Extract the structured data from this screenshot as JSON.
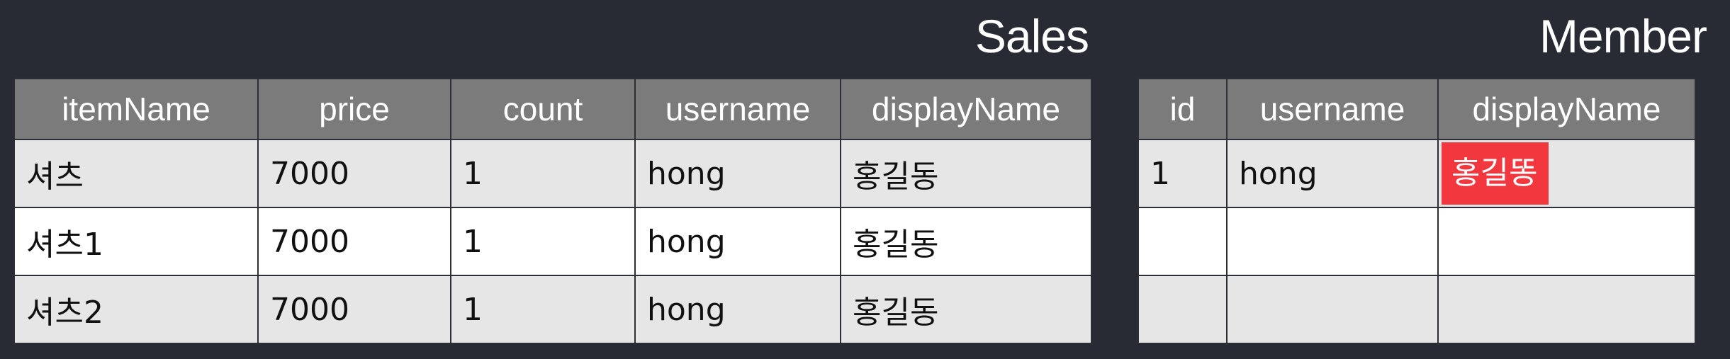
{
  "sales": {
    "title": "Sales",
    "columns": [
      "itemName",
      "price",
      "count",
      "username",
      "displayName"
    ],
    "rows": [
      [
        "셔츠",
        "7000",
        "1",
        "hong",
        "홍길동"
      ],
      [
        "셔츠1",
        "7000",
        "1",
        "hong",
        "홍길동"
      ],
      [
        "셔츠2",
        "7000",
        "1",
        "hong",
        "홍길동"
      ]
    ]
  },
  "member": {
    "title": "Member",
    "columns": [
      "id",
      "username",
      "displayName"
    ],
    "rows": [
      [
        "1",
        "hong",
        "홍길똥"
      ],
      [
        "",
        "",
        ""
      ],
      [
        "",
        "",
        ""
      ]
    ],
    "highlight_color": "#f2383e"
  }
}
